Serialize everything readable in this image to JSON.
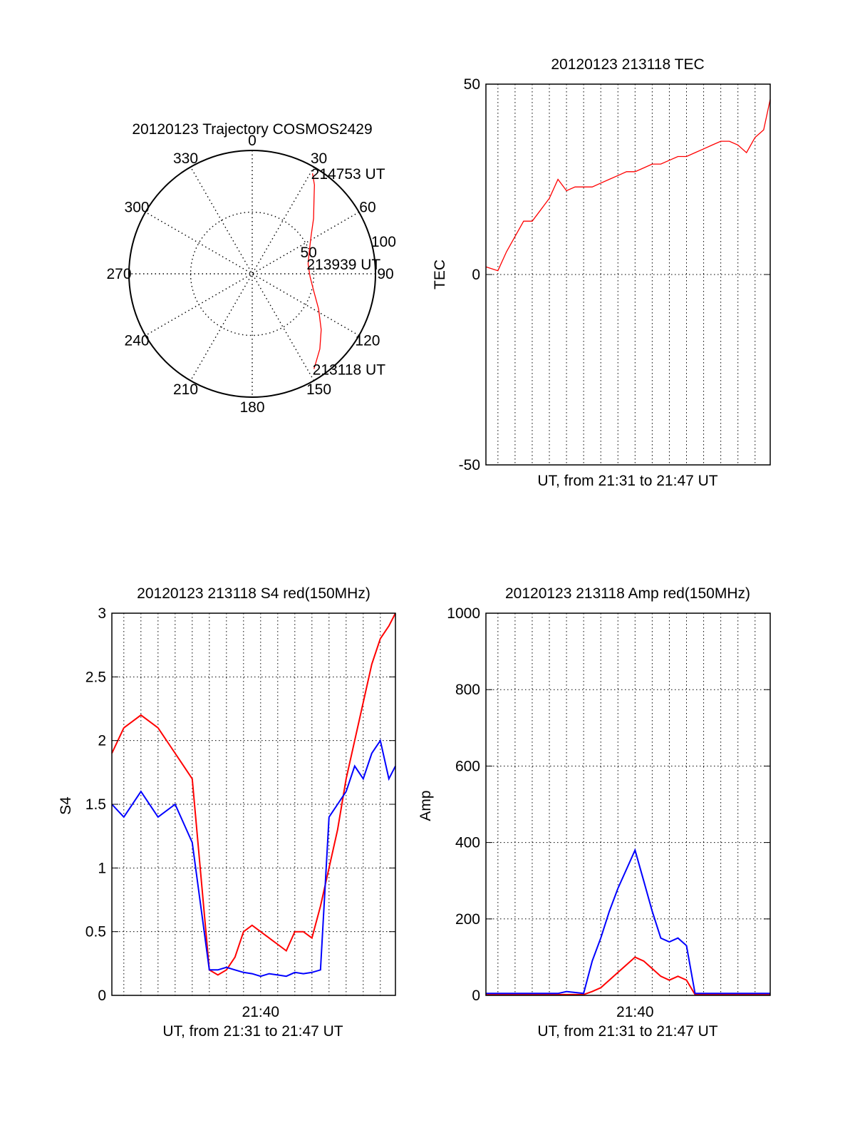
{
  "colors": {
    "red": "#ff0000",
    "blue": "#0000ff",
    "axis": "#000000",
    "grid": "#000000",
    "background": "#ffffff"
  },
  "chart_data": [
    {
      "type": "polar",
      "title": "20120123 Trajectory COSMOS2429",
      "grid": true,
      "angle_ticks": [
        "0",
        "30",
        "60",
        "90",
        "120",
        "150",
        "180",
        "210",
        "240",
        "270",
        "300",
        "330"
      ],
      "radius_ticks": [
        "50",
        "100"
      ],
      "rmax": 100,
      "series": [
        {
          "color": "#ff0000",
          "az": [
            31,
            35,
            40,
            48,
            57,
            68,
            80,
            93,
            106,
            118,
            129,
            138,
            147
          ],
          "r": [
            95,
            88,
            78,
            67,
            57,
            50,
            46,
            47,
            52,
            61,
            72,
            82,
            92
          ]
        }
      ],
      "annotations": [
        {
          "text": "214753 UT",
          "az": 31,
          "r": 95
        },
        {
          "text": "213939 UT",
          "az": 80,
          "r": 46
        },
        {
          "text": "213118 UT",
          "az": 147,
          "r": 92
        }
      ]
    },
    {
      "type": "line",
      "title": "20120123 213118 TEC",
      "xlabel": "UT, from 21:31 to 21:47 UT",
      "ylabel": "TEC",
      "xlim": [
        "21:31:18",
        "21:47:53"
      ],
      "ylim": [
        -50,
        50
      ],
      "yticks": [
        "50",
        "0",
        "-50"
      ],
      "grid": true,
      "series": [
        {
          "color": "#ff0000",
          "x": [
            "21:31:18",
            "21:32:00",
            "21:32:30",
            "21:33:00",
            "21:33:30",
            "21:34:00",
            "21:34:30",
            "21:35:00",
            "21:35:30",
            "21:36:00",
            "21:36:30",
            "21:37:00",
            "21:37:30",
            "21:38:00",
            "21:38:30",
            "21:39:00",
            "21:39:30",
            "21:40:00",
            "21:40:30",
            "21:41:00",
            "21:41:30",
            "21:42:00",
            "21:42:30",
            "21:43:00",
            "21:43:30",
            "21:44:00",
            "21:44:30",
            "21:45:00",
            "21:45:30",
            "21:46:00",
            "21:46:30",
            "21:47:00",
            "21:47:30",
            "21:47:53"
          ],
          "y": [
            2,
            1,
            6,
            10,
            14,
            14,
            17,
            20,
            25,
            22,
            23,
            23,
            23,
            24,
            25,
            26,
            27,
            27,
            28,
            29,
            29,
            30,
            31,
            31,
            32,
            33,
            34,
            35,
            35,
            34,
            32,
            36,
            38,
            46
          ]
        }
      ]
    },
    {
      "type": "line",
      "title": "20120123 213118 S4 red(150MHz)",
      "xlabel": "UT, from 21:31 to 21:47 UT",
      "ylabel": "S4",
      "xlim": [
        "21:31:18",
        "21:47:53"
      ],
      "ylim": [
        0,
        3
      ],
      "yticks": [
        "0",
        "0.5",
        "1",
        "1.5",
        "2",
        "2.5",
        "3"
      ],
      "xticks": [
        "21:40"
      ],
      "grid": true,
      "series": [
        {
          "color": "#ff0000",
          "x": [
            "21:31:18",
            "21:32:00",
            "21:33:00",
            "21:34:00",
            "21:35:00",
            "21:36:00",
            "21:37:00",
            "21:37:30",
            "21:38:00",
            "21:38:30",
            "21:39:00",
            "21:39:30",
            "21:40:00",
            "21:40:30",
            "21:41:00",
            "21:41:30",
            "21:42:00",
            "21:42:30",
            "21:43:00",
            "21:43:30",
            "21:44:00",
            "21:44:30",
            "21:45:00",
            "21:45:30",
            "21:46:00",
            "21:46:30",
            "21:47:00",
            "21:47:30",
            "21:47:53"
          ],
          "y": [
            1.9,
            2.1,
            2.2,
            2.1,
            1.9,
            1.7,
            0.2,
            0.16,
            0.2,
            0.3,
            0.5,
            0.55,
            0.5,
            0.45,
            0.4,
            0.35,
            0.5,
            0.5,
            0.45,
            0.7,
            1.0,
            1.3,
            1.7,
            2.0,
            2.3,
            2.6,
            2.8,
            2.9,
            3.0
          ]
        },
        {
          "color": "#0000ff",
          "x": [
            "21:31:18",
            "21:32:00",
            "21:33:00",
            "21:34:00",
            "21:35:00",
            "21:36:00",
            "21:37:00",
            "21:37:30",
            "21:38:00",
            "21:38:30",
            "21:39:00",
            "21:39:30",
            "21:40:00",
            "21:40:30",
            "21:41:00",
            "21:41:30",
            "21:42:00",
            "21:42:30",
            "21:43:00",
            "21:43:30",
            "21:44:00",
            "21:44:30",
            "21:45:00",
            "21:45:30",
            "21:46:00",
            "21:46:30",
            "21:47:00",
            "21:47:30",
            "21:47:53"
          ],
          "y": [
            1.5,
            1.4,
            1.6,
            1.4,
            1.5,
            1.2,
            0.2,
            0.2,
            0.22,
            0.2,
            0.18,
            0.17,
            0.15,
            0.17,
            0.16,
            0.15,
            0.18,
            0.17,
            0.18,
            0.2,
            1.4,
            1.5,
            1.6,
            1.8,
            1.7,
            1.9,
            2.0,
            1.7,
            1.8
          ]
        }
      ]
    },
    {
      "type": "line",
      "title": "20120123 213118 Amp red(150MHz)",
      "xlabel": "UT, from 21:31 to 21:47 UT",
      "ylabel": "Amp",
      "xlim": [
        "21:31:18",
        "21:47:53"
      ],
      "ylim": [
        0,
        1000
      ],
      "yticks": [
        "0",
        "200",
        "400",
        "600",
        "800",
        "1000"
      ],
      "xticks": [
        "21:40"
      ],
      "grid": true,
      "series": [
        {
          "color": "#ff0000",
          "x": [
            "21:31:18",
            "21:37:00",
            "21:37:30",
            "21:38:00",
            "21:38:30",
            "21:39:00",
            "21:39:30",
            "21:40:00",
            "21:40:30",
            "21:41:00",
            "21:41:30",
            "21:42:00",
            "21:42:30",
            "21:43:00",
            "21:43:30",
            "21:44:00",
            "21:47:53"
          ],
          "y": [
            2,
            2,
            10,
            20,
            40,
            60,
            80,
            100,
            90,
            70,
            50,
            40,
            50,
            40,
            2,
            2,
            2
          ]
        },
        {
          "color": "#0000ff",
          "x": [
            "21:31:18",
            "21:35:30",
            "21:36:00",
            "21:37:00",
            "21:37:30",
            "21:38:00",
            "21:38:30",
            "21:39:00",
            "21:39:30",
            "21:40:00",
            "21:40:30",
            "21:41:00",
            "21:41:30",
            "21:42:00",
            "21:42:30",
            "21:43:00",
            "21:43:30",
            "21:44:00",
            "21:47:53"
          ],
          "y": [
            5,
            5,
            10,
            5,
            90,
            150,
            220,
            280,
            330,
            380,
            300,
            220,
            150,
            140,
            150,
            130,
            5,
            5,
            5
          ]
        }
      ]
    }
  ]
}
